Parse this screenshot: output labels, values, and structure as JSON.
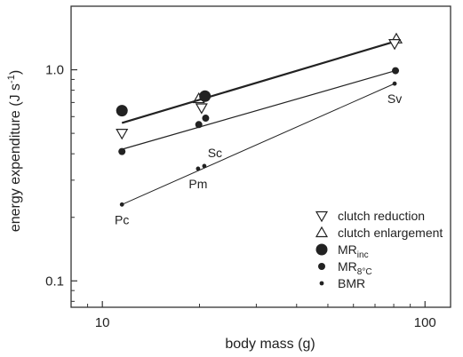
{
  "chart_data": {
    "type": "scatter",
    "xscale": "log",
    "yscale": "log",
    "xlim": [
      8,
      120
    ],
    "ylim": [
      0.075,
      2.0
    ],
    "xticks": [
      10,
      100
    ],
    "xtick_labels": [
      "10",
      "100"
    ],
    "yticks": [
      0.1,
      1.0
    ],
    "ytick_labels": [
      "0.1",
      "1.0"
    ],
    "xlabel": "body mass (g)",
    "ylabel_main": "energy expenditure (J s",
    "ylabel_sup": "-1",
    "ylabel_close": ")",
    "grid": false,
    "legend_position": "bottom-right",
    "series": [
      {
        "name": "clutch reduction",
        "legend_main": "clutch reduction",
        "legend_sub": "",
        "marker": "triangle-down",
        "points": [
          {
            "x": 11.5,
            "y": 0.5
          },
          {
            "x": 20.3,
            "y": 0.66
          },
          {
            "x": 80.5,
            "y": 1.33
          }
        ],
        "fit": {
          "x": [
            11.5,
            80.5
          ],
          "y": [
            0.56,
            1.36
          ]
        },
        "fit_width": 2.2
      },
      {
        "name": "clutch enlargement",
        "legend_main": "clutch enlargement",
        "legend_sub": "",
        "marker": "triangle-up",
        "points": [
          {
            "x": 19.9,
            "y": 0.73
          },
          {
            "x": 81.5,
            "y": 1.4
          }
        ],
        "fit": null
      },
      {
        "name": "MRinc",
        "legend_main": "MR",
        "legend_sub": "inc",
        "marker": "circle-large",
        "points": [
          {
            "x": 11.5,
            "y": 0.64
          },
          {
            "x": 20.8,
            "y": 0.75
          }
        ],
        "fit": null
      },
      {
        "name": "MR8°C",
        "legend_main": "MR",
        "legend_sub": "8°C",
        "marker": "circle-medium",
        "points": [
          {
            "x": 11.5,
            "y": 0.41
          },
          {
            "x": 19.9,
            "y": 0.55
          },
          {
            "x": 20.9,
            "y": 0.59
          },
          {
            "x": 81.0,
            "y": 0.99
          }
        ],
        "fit": {
          "x": [
            11.5,
            81.0
          ],
          "y": [
            0.42,
            0.99
          ]
        },
        "fit_width": 1.2
      },
      {
        "name": "BMR",
        "legend_main": "BMR",
        "legend_sub": "",
        "marker": "circle-small",
        "points": [
          {
            "x": 11.5,
            "y": 0.23
          },
          {
            "x": 19.8,
            "y": 0.34
          },
          {
            "x": 20.7,
            "y": 0.35
          },
          {
            "x": 80.5,
            "y": 0.86
          }
        ],
        "fit": {
          "x": [
            11.5,
            80.5
          ],
          "y": [
            0.23,
            0.86
          ]
        },
        "fit_width": 1.0
      }
    ],
    "annotations": [
      {
        "text": "Pc",
        "x": 11.5,
        "y": 0.23,
        "anchor": "below"
      },
      {
        "text": "Pm",
        "x": 19.8,
        "y": 0.34,
        "anchor": "below"
      },
      {
        "text": "Sc",
        "x": 20.7,
        "y": 0.35,
        "anchor": "above"
      },
      {
        "text": "Sv",
        "x": 80.5,
        "y": 0.86,
        "anchor": "below"
      }
    ],
    "colors": {
      "ink": "#222222",
      "axis": "#333333"
    }
  }
}
